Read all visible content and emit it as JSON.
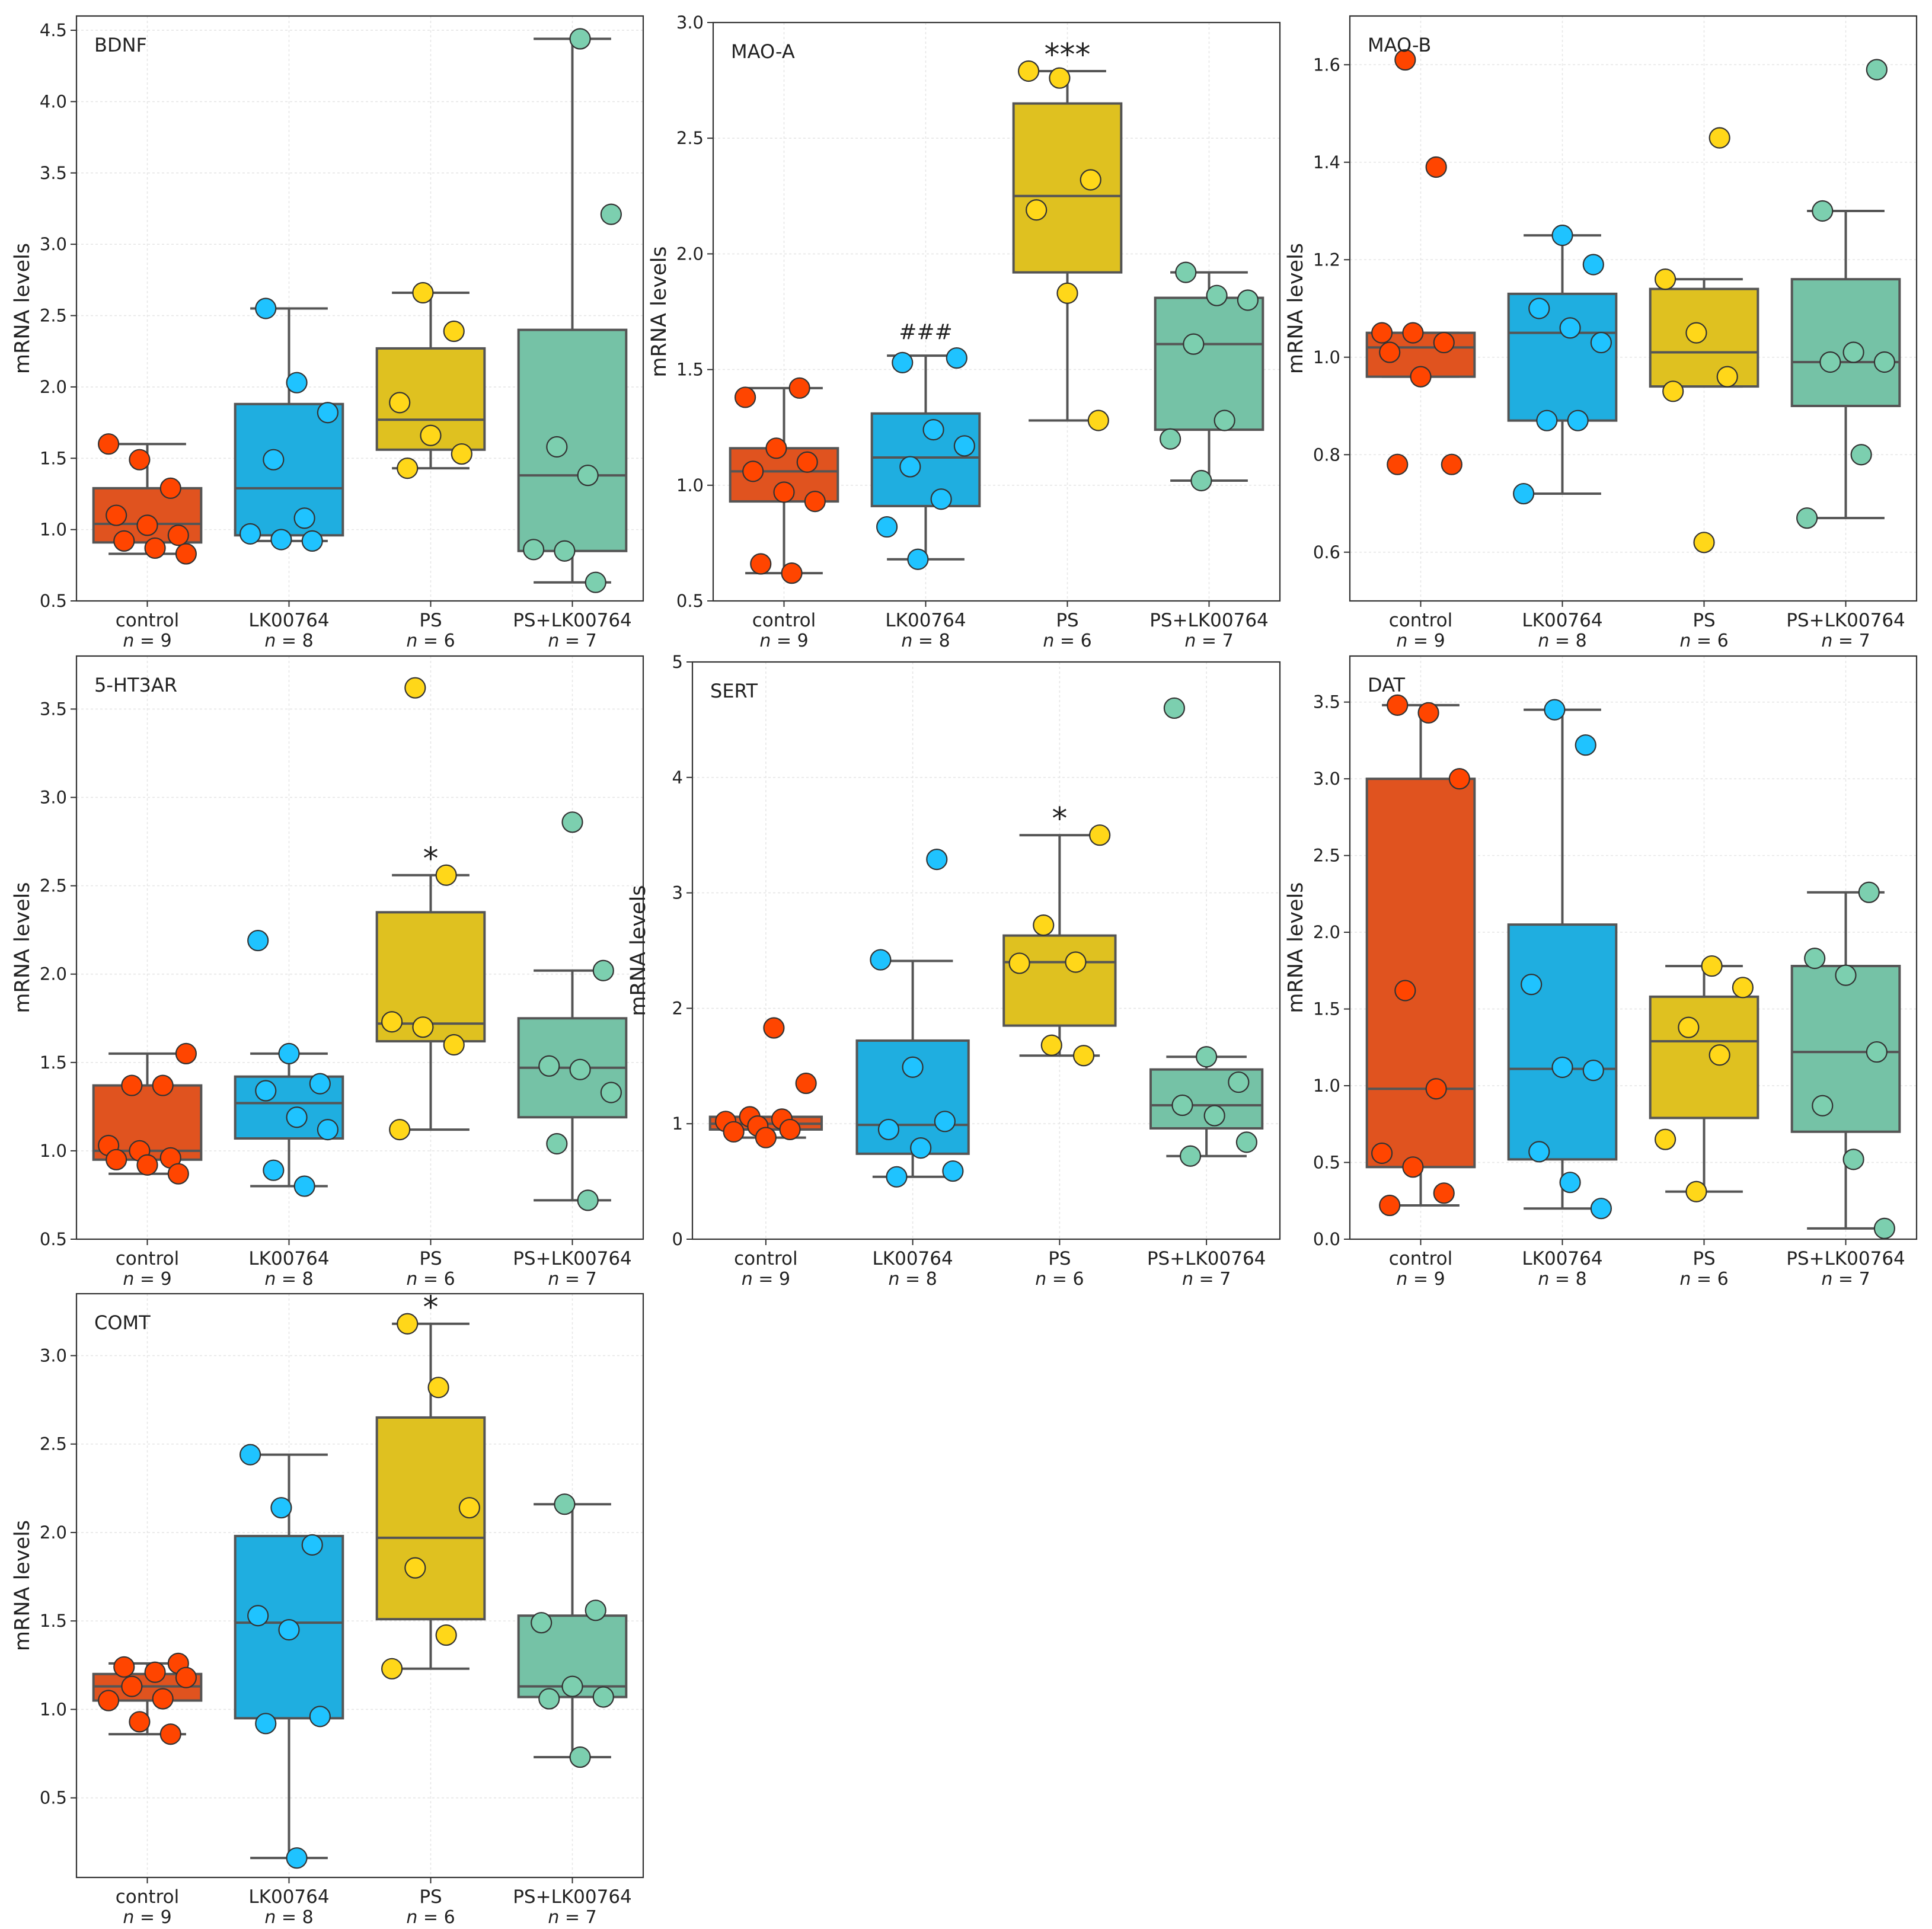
{
  "chart_data": [
    {
      "type": "box",
      "title": "BDNF",
      "ylabel": "mRNA levels",
      "ylim": [
        0.5,
        4.6
      ],
      "yticks": [
        0.5,
        1.0,
        1.5,
        2.0,
        2.5,
        3.0,
        3.5,
        4.0,
        4.5
      ],
      "groups": [
        {
          "name": "control",
          "n": "9",
          "q1": 0.91,
          "median": 1.04,
          "q3": 1.29,
          "wlo": 0.83,
          "whi": 1.6,
          "points": [
            1.6,
            1.49,
            1.29,
            1.1,
            1.03,
            0.96,
            0.92,
            0.87,
            0.83
          ],
          "sig": ""
        },
        {
          "name": "LK00764",
          "n": "8",
          "q1": 0.96,
          "median": 1.29,
          "q3": 1.88,
          "wlo": 0.92,
          "whi": 2.55,
          "points": [
            2.55,
            2.03,
            1.82,
            1.49,
            1.08,
            0.97,
            0.93,
            0.92
          ],
          "sig": ""
        },
        {
          "name": "PS",
          "n": "6",
          "q1": 1.56,
          "median": 1.77,
          "q3": 2.27,
          "wlo": 1.43,
          "whi": 2.66,
          "points": [
            2.66,
            2.39,
            1.89,
            1.66,
            1.53,
            1.43
          ],
          "sig": ""
        },
        {
          "name": "PS+LK00764",
          "n": "7",
          "q1": 0.85,
          "median": 1.38,
          "q3": 2.4,
          "wlo": 0.63,
          "whi": 4.44,
          "points": [
            4.44,
            3.21,
            1.58,
            1.38,
            0.86,
            0.85,
            0.63
          ],
          "sig": ""
        }
      ]
    },
    {
      "type": "box",
      "title": "MAO-A",
      "ylabel": "mRNA levels",
      "ylim": [
        0.5,
        3.0
      ],
      "yticks": [
        0.5,
        1.0,
        1.5,
        2.0,
        2.5,
        3.0
      ],
      "groups": [
        {
          "name": "control",
          "n": "9",
          "q1": 0.93,
          "median": 1.06,
          "q3": 1.16,
          "wlo": 0.62,
          "whi": 1.42,
          "points": [
            1.42,
            1.38,
            1.16,
            1.1,
            1.06,
            0.97,
            0.93,
            0.66,
            0.62
          ],
          "sig": ""
        },
        {
          "name": "LK00764",
          "n": "8",
          "q1": 0.91,
          "median": 1.12,
          "q3": 1.31,
          "wlo": 0.68,
          "whi": 1.56,
          "points": [
            1.55,
            1.53,
            1.24,
            1.17,
            1.08,
            0.94,
            0.82,
            0.68
          ],
          "sig": "###"
        },
        {
          "name": "PS",
          "n": "6",
          "q1": 1.92,
          "median": 2.25,
          "q3": 2.65,
          "wlo": 1.28,
          "whi": 2.79,
          "points": [
            2.79,
            2.76,
            2.32,
            2.19,
            1.83,
            1.28
          ],
          "sig": "***"
        },
        {
          "name": "PS+LK00764",
          "n": "7",
          "q1": 1.24,
          "median": 1.61,
          "q3": 1.81,
          "wlo": 1.02,
          "whi": 1.92,
          "points": [
            1.92,
            1.82,
            1.8,
            1.61,
            1.28,
            1.2,
            1.02
          ],
          "sig": ""
        }
      ]
    },
    {
      "type": "box",
      "title": "MAO-B",
      "ylabel": "mRNA levels",
      "ylim": [
        0.5,
        1.7
      ],
      "yticks": [
        0.6,
        0.8,
        1.0,
        1.2,
        1.4,
        1.6
      ],
      "groups": [
        {
          "name": "control",
          "n": "9",
          "q1": 0.96,
          "median": 1.02,
          "q3": 1.05,
          "wlo": 0.96,
          "whi": 1.05,
          "points": [
            1.61,
            1.39,
            1.05,
            1.05,
            1.03,
            1.01,
            0.96,
            0.78,
            0.78
          ],
          "sig": ""
        },
        {
          "name": "LK00764",
          "n": "8",
          "q1": 0.87,
          "median": 1.05,
          "q3": 1.13,
          "wlo": 0.72,
          "whi": 1.25,
          "points": [
            1.25,
            1.19,
            1.1,
            1.06,
            1.03,
            0.87,
            0.87,
            0.72
          ],
          "sig": ""
        },
        {
          "name": "PS",
          "n": "6",
          "q1": 0.94,
          "median": 1.01,
          "q3": 1.14,
          "wlo": 0.94,
          "whi": 1.16,
          "points": [
            1.45,
            1.16,
            1.05,
            0.96,
            0.93,
            0.62
          ],
          "sig": ""
        },
        {
          "name": "PS+LK00764",
          "n": "7",
          "q1": 0.9,
          "median": 0.99,
          "q3": 1.16,
          "wlo": 0.67,
          "whi": 1.3,
          "points": [
            1.59,
            1.3,
            1.01,
            0.99,
            0.99,
            0.8,
            0.67
          ],
          "sig": ""
        }
      ]
    },
    {
      "type": "box",
      "title": "5-HT3AR",
      "ylabel": "mRNA levels",
      "ylim": [
        0.5,
        3.8
      ],
      "yticks": [
        0.5,
        1.0,
        1.5,
        2.0,
        2.5,
        3.0,
        3.5
      ],
      "groups": [
        {
          "name": "control",
          "n": "9",
          "q1": 0.95,
          "median": 1.0,
          "q3": 1.37,
          "wlo": 0.87,
          "whi": 1.55,
          "points": [
            1.55,
            1.37,
            1.37,
            1.03,
            1.0,
            0.96,
            0.95,
            0.92,
            0.87
          ],
          "sig": ""
        },
        {
          "name": "LK00764",
          "n": "8",
          "q1": 1.07,
          "median": 1.27,
          "q3": 1.42,
          "wlo": 0.8,
          "whi": 1.55,
          "points": [
            2.19,
            1.55,
            1.38,
            1.34,
            1.19,
            1.12,
            0.89,
            0.8
          ],
          "sig": ""
        },
        {
          "name": "PS",
          "n": "6",
          "q1": 1.62,
          "median": 1.72,
          "q3": 2.35,
          "wlo": 1.12,
          "whi": 2.56,
          "points": [
            3.62,
            2.56,
            1.73,
            1.7,
            1.6,
            1.12
          ],
          "sig": "*"
        },
        {
          "name": "PS+LK00764",
          "n": "7",
          "q1": 1.19,
          "median": 1.47,
          "q3": 1.75,
          "wlo": 0.72,
          "whi": 2.02,
          "points": [
            2.86,
            2.02,
            1.48,
            1.46,
            1.33,
            1.04,
            0.72
          ],
          "sig": ""
        }
      ]
    },
    {
      "type": "box",
      "title": "SERT",
      "ylabel": "mRNA levels",
      "ylim": [
        0,
        5
      ],
      "yticks": [
        0,
        1,
        2,
        3,
        4,
        5
      ],
      "groups": [
        {
          "name": "control",
          "n": "9",
          "q1": 0.95,
          "median": 1.0,
          "q3": 1.06,
          "wlo": 0.88,
          "whi": 1.06,
          "points": [
            1.83,
            1.35,
            1.06,
            1.04,
            1.02,
            0.98,
            0.95,
            0.93,
            0.88
          ],
          "sig": ""
        },
        {
          "name": "LK00764",
          "n": "8",
          "q1": 0.74,
          "median": 0.99,
          "q3": 1.72,
          "wlo": 0.54,
          "whi": 2.41,
          "points": [
            3.29,
            2.42,
            1.49,
            1.02,
            0.95,
            0.79,
            0.59,
            0.54
          ],
          "sig": ""
        },
        {
          "name": "PS",
          "n": "6",
          "q1": 1.85,
          "median": 2.4,
          "q3": 2.63,
          "wlo": 1.59,
          "whi": 3.5,
          "points": [
            3.5,
            2.72,
            2.4,
            2.39,
            1.68,
            1.59
          ],
          "sig": "*"
        },
        {
          "name": "PS+LK00764",
          "n": "7",
          "q1": 0.96,
          "median": 1.16,
          "q3": 1.47,
          "wlo": 0.72,
          "whi": 1.58,
          "points": [
            4.6,
            1.58,
            1.36,
            1.16,
            1.07,
            0.84,
            0.72
          ],
          "sig": ""
        }
      ]
    },
    {
      "type": "box",
      "title": "DAT",
      "ylabel": "mRNA levels",
      "ylim": [
        0,
        3.8
      ],
      "yticks": [
        0.0,
        0.5,
        1.0,
        1.5,
        2.0,
        2.5,
        3.0,
        3.5
      ],
      "groups": [
        {
          "name": "control",
          "n": "9",
          "q1": 0.47,
          "median": 0.98,
          "q3": 3.0,
          "wlo": 0.22,
          "whi": 3.48,
          "points": [
            3.48,
            3.43,
            3.0,
            1.62,
            0.98,
            0.56,
            0.47,
            0.3,
            0.22
          ],
          "sig": ""
        },
        {
          "name": "LK00764",
          "n": "8",
          "q1": 0.52,
          "median": 1.11,
          "q3": 2.05,
          "wlo": 0.2,
          "whi": 3.45,
          "points": [
            3.45,
            3.22,
            1.66,
            1.12,
            1.1,
            0.57,
            0.37,
            0.2
          ],
          "sig": ""
        },
        {
          "name": "PS",
          "n": "6",
          "q1": 0.79,
          "median": 1.29,
          "q3": 1.58,
          "wlo": 0.31,
          "whi": 1.78,
          "points": [
            1.78,
            1.64,
            1.38,
            1.2,
            0.65,
            0.31
          ],
          "sig": ""
        },
        {
          "name": "PS+LK00764",
          "n": "7",
          "q1": 0.7,
          "median": 1.22,
          "q3": 1.78,
          "wlo": 0.07,
          "whi": 2.26,
          "points": [
            2.26,
            1.83,
            1.72,
            1.22,
            0.87,
            0.52,
            0.07
          ],
          "sig": ""
        }
      ]
    },
    {
      "type": "box",
      "title": "COMT",
      "ylabel": "mRNA levels",
      "ylim": [
        0.05,
        3.35
      ],
      "yticks": [
        0.5,
        1.0,
        1.5,
        2.0,
        2.5,
        3.0
      ],
      "groups": [
        {
          "name": "control",
          "n": "9",
          "q1": 1.05,
          "median": 1.13,
          "q3": 1.2,
          "wlo": 0.86,
          "whi": 1.26,
          "points": [
            1.26,
            1.24,
            1.21,
            1.18,
            1.13,
            1.06,
            1.05,
            0.93,
            0.86
          ],
          "sig": ""
        },
        {
          "name": "LK00764",
          "n": "8",
          "q1": 0.95,
          "median": 1.49,
          "q3": 1.98,
          "wlo": 0.16,
          "whi": 2.44,
          "points": [
            2.44,
            2.14,
            1.93,
            1.53,
            1.45,
            0.96,
            0.92,
            0.16
          ],
          "sig": ""
        },
        {
          "name": "PS",
          "n": "6",
          "q1": 1.51,
          "median": 1.97,
          "q3": 2.65,
          "wlo": 1.23,
          "whi": 3.18,
          "points": [
            3.18,
            2.82,
            2.14,
            1.8,
            1.42,
            1.23
          ],
          "sig": "*"
        },
        {
          "name": "PS+LK00764",
          "n": "7",
          "q1": 1.07,
          "median": 1.13,
          "q3": 1.53,
          "wlo": 0.73,
          "whi": 2.16,
          "points": [
            2.16,
            1.56,
            1.49,
            1.13,
            1.07,
            1.06,
            0.73
          ],
          "sig": ""
        }
      ]
    }
  ],
  "n_prefix": "n",
  "n_sep": " = ",
  "colors": {
    "control_box": "#e0531f",
    "control_point": "#ff4500",
    "LK00764_box": "#1faee0",
    "LK00764_point": "#1fc3ff",
    "PS_box": "#dfc120",
    "PS_point": "#ffd719",
    "PS+LK00764_box": "#75c2a6",
    "PS+LK00764_point": "#7ccfaf"
  }
}
